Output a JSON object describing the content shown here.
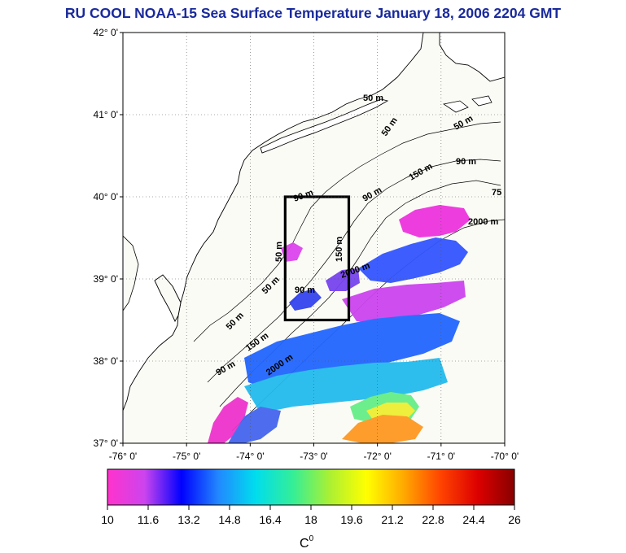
{
  "title": "RU COOL  NOAA-15 Sea Surface Temperature January 18, 2006 2204 GMT",
  "map": {
    "lon_range": [
      -76,
      -70
    ],
    "lat_range": [
      37,
      42
    ],
    "lon_ticks": [
      "-76° 0'",
      "-75° 0'",
      "-74° 0'",
      "-73° 0'",
      "-72° 0'",
      "-71° 0'",
      "-70° 0'"
    ],
    "lat_ticks": [
      "37° 0'",
      "38° 0'",
      "39° 0'",
      "40° 0'",
      "41° 0'",
      "42° 0'"
    ],
    "grid": "dotted",
    "study_box": {
      "lon": [
        -73.45,
        -72.45
      ],
      "lat": [
        38.5,
        40
      ]
    },
    "depth_labels": [
      "50 m",
      "50 m",
      "50 m",
      "90 m",
      "150 m",
      "90 m",
      "2000 m",
      "2000 m",
      "150 m",
      "90 m",
      "50 m",
      "50 m",
      "90 m",
      "150 m",
      "50 m",
      "90 m",
      "2000 m",
      "75"
    ],
    "colors": {
      "land": "#ffffff",
      "water": "#fbfbf6",
      "coast": "#000000",
      "title": "#1a2a9c"
    }
  },
  "colorbar": {
    "min": 10,
    "max": 26,
    "ticks": [
      "10",
      "11.6",
      "13.2",
      "14.8",
      "16.4",
      "18",
      "19.6",
      "21.2",
      "22.8",
      "24.4",
      "26"
    ],
    "unit": "C",
    "unit_sup": "0",
    "stops": [
      "#ff33cc",
      "#cc44ee",
      "#0000ff",
      "#2288ff",
      "#00ddee",
      "#33ee99",
      "#aaf033",
      "#ffff00",
      "#ffaa00",
      "#ff4400",
      "#dd0000",
      "#880000"
    ]
  }
}
